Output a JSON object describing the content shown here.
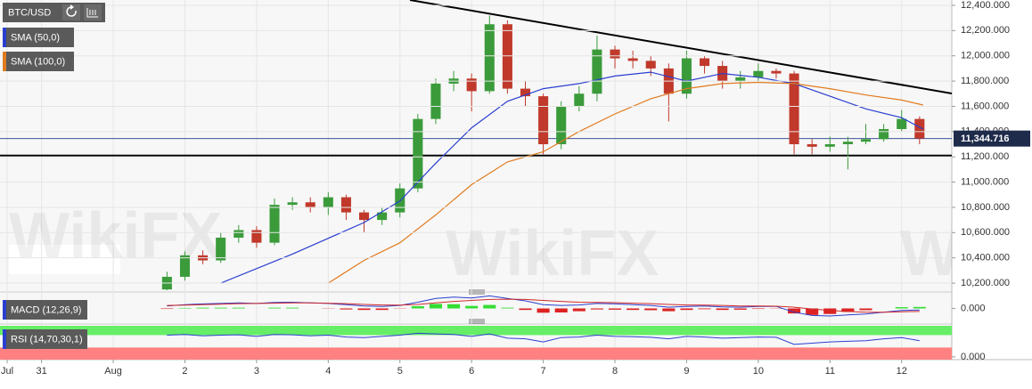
{
  "chart_data": [
    {
      "type": "candlestick",
      "symbol": "BTC/USD",
      "watermark": "WikiFX",
      "x": [
        1.75,
        2,
        2.25,
        2.5,
        2.75,
        3,
        3.25,
        3.5,
        3.75,
        4,
        4.25,
        4.5,
        4.75,
        5,
        5.25,
        5.5,
        5.75,
        6,
        6.25,
        6.5,
        6.75,
        7,
        7.25,
        7.5,
        7.75,
        8,
        8.25,
        8.5,
        8.75,
        9,
        9.25,
        9.5,
        9.75,
        10,
        10.25,
        10.5,
        10.75,
        11,
        11.25,
        11.5,
        11.75,
        12,
        12.25
      ],
      "open": [
        10150,
        10250,
        10420,
        10380,
        10560,
        10620,
        10520,
        10820,
        10840,
        10800,
        10880,
        10760,
        10700,
        10760,
        10950,
        11500,
        11780,
        11820,
        11720,
        12250,
        11740,
        11680,
        11300,
        11600,
        11700,
        12050,
        11980,
        11960,
        11900,
        11700,
        11980,
        11920,
        11800,
        11830,
        11880,
        11860,
        11300,
        11280,
        11300,
        11320,
        11340,
        11420,
        11500
      ],
      "high": [
        10290,
        10450,
        10460,
        10600,
        10660,
        10650,
        10870,
        10880,
        10880,
        10920,
        10900,
        10780,
        10800,
        10990,
        11540,
        11820,
        11880,
        11860,
        12320,
        12280,
        11800,
        11700,
        11640,
        11760,
        12160,
        12080,
        12040,
        12000,
        11940,
        12040,
        12000,
        11960,
        11880,
        11940,
        11900,
        11880,
        11340,
        11360,
        11360,
        11460,
        11460,
        11570,
        11520
      ],
      "low": [
        10120,
        10220,
        10350,
        10360,
        10520,
        10480,
        10500,
        10780,
        10760,
        10740,
        10700,
        10600,
        10660,
        10720,
        10920,
        11460,
        11720,
        11560,
        11700,
        11700,
        11600,
        11220,
        11260,
        11560,
        11640,
        11900,
        11900,
        11840,
        11480,
        11660,
        11860,
        11740,
        11740,
        11800,
        11820,
        11220,
        11220,
        11240,
        11100,
        11300,
        11320,
        11400,
        11300
      ],
      "close": [
        10250,
        10420,
        10380,
        10560,
        10620,
        10520,
        10820,
        10840,
        10800,
        10880,
        10760,
        10700,
        10760,
        10950,
        11500,
        11780,
        11820,
        11720,
        12250,
        11740,
        11680,
        11300,
        11600,
        11700,
        12050,
        11980,
        11960,
        11900,
        11700,
        11980,
        11920,
        11800,
        11830,
        11880,
        11860,
        11300,
        11280,
        11300,
        11320,
        11340,
        11420,
        11500,
        11345
      ],
      "up_color": "#3b9b3b",
      "down_color": "#c0392b",
      "series": [
        {
          "name": "SMA (50,0)",
          "color": "#2a3fd0",
          "x": [
            2.5,
            3.5,
            4.5,
            5,
            5.5,
            6,
            6.5,
            7,
            7.5,
            8,
            8.5,
            9,
            9.5,
            10,
            10.5,
            11,
            11.5,
            12,
            12.3
          ],
          "values": [
            10200,
            10430,
            10680,
            10850,
            11150,
            11430,
            11640,
            11740,
            11780,
            11840,
            11870,
            11800,
            11860,
            11830,
            11780,
            11680,
            11580,
            11510,
            11420
          ]
        },
        {
          "name": "SMA (100,0)",
          "color": "#e07b20",
          "x": [
            4,
            4.5,
            5,
            5.5,
            6,
            6.5,
            7,
            7.5,
            8,
            8.5,
            9,
            9.5,
            10,
            10.5,
            11,
            11.5,
            12,
            12.3
          ],
          "values": [
            10200,
            10380,
            10520,
            10740,
            10980,
            11160,
            11240,
            11400,
            11540,
            11660,
            11740,
            11780,
            11790,
            11780,
            11740,
            11690,
            11650,
            11610
          ]
        }
      ],
      "trendlines": [
        {
          "x": [
            5.14,
            12.7
          ],
          "values": [
            12442,
            11702
          ]
        },
        {
          "x": [
            -0.58,
            12.7
          ],
          "values": [
            11210,
            11210
          ]
        }
      ],
      "trendline_color": "#000000",
      "last_price": {
        "value": 11344.716,
        "label": "11,344.716"
      },
      "xlim": [
        -0.58,
        12.7
      ],
      "ylim": [
        10144,
        12442
      ],
      "xticks": [
        {
          "value": -0.48,
          "label": "Jul"
        },
        {
          "value": 0,
          "label": "31"
        },
        {
          "value": 1,
          "label": "Aug"
        },
        2,
        3,
        4,
        5,
        6,
        7,
        8,
        9,
        10,
        11,
        12
      ],
      "yticks": [
        {
          "value": 10200,
          "label": "10,200.000"
        },
        {
          "value": 10400,
          "label": "10,400.000"
        },
        {
          "value": 10600,
          "label": "10,600.000"
        },
        {
          "value": 10800,
          "label": "10,800.000"
        },
        {
          "value": 11000,
          "label": "11,000.000"
        },
        {
          "value": 11200,
          "label": "11,200.000"
        },
        {
          "value": 11400,
          "label": "11,400.000"
        },
        {
          "value": 11600,
          "label": "11,600.000"
        },
        {
          "value": 11800,
          "label": "11,800.000"
        },
        {
          "value": 12000,
          "label": "12,000.000"
        },
        {
          "value": 12200,
          "label": "12,200.000"
        },
        {
          "value": 12400,
          "label": "12,400.000"
        }
      ],
      "grid": true
    },
    {
      "type": "macd",
      "title": "MACD (12,26,9)",
      "x": [
        1.75,
        2,
        2.25,
        2.5,
        2.75,
        3,
        3.25,
        3.5,
        3.75,
        4,
        4.25,
        4.5,
        4.75,
        5,
        5.25,
        5.5,
        5.75,
        6,
        6.25,
        6.5,
        6.75,
        7,
        7.25,
        7.5,
        7.75,
        8,
        8.25,
        8.5,
        8.75,
        9,
        9.25,
        9.5,
        9.75,
        10,
        10.25,
        10.5,
        10.75,
        11,
        11.25,
        11.5,
        11.75,
        12,
        12.25
      ],
      "macd": [
        10,
        15,
        18,
        20,
        22,
        20,
        24,
        25,
        22,
        20,
        15,
        10,
        8,
        12,
        25,
        40,
        45,
        42,
        50,
        40,
        30,
        15,
        12,
        14,
        20,
        18,
        15,
        12,
        5,
        8,
        10,
        6,
        5,
        8,
        8,
        -15,
        -28,
        -30,
        -26,
        -22,
        -15,
        -8,
        -6
      ],
      "signal": [
        12,
        13,
        15,
        17,
        19,
        20,
        21,
        22,
        22,
        21,
        19,
        16,
        14,
        13,
        16,
        22,
        28,
        32,
        36,
        37,
        36,
        32,
        28,
        25,
        24,
        23,
        21,
        19,
        16,
        14,
        13,
        12,
        10,
        10,
        9,
        5,
        -2,
        -8,
        -12,
        -15,
        -15,
        -13,
        -12
      ],
      "histogram": [
        -2,
        2,
        3,
        3,
        3,
        0,
        3,
        3,
        0,
        -1,
        -4,
        -6,
        -6,
        -1,
        9,
        18,
        17,
        10,
        14,
        3,
        -6,
        -17,
        -16,
        -11,
        -4,
        -5,
        -6,
        -7,
        -11,
        -6,
        -3,
        -6,
        -5,
        -2,
        -1,
        -20,
        -26,
        -22,
        -14,
        -7,
        0,
        5,
        6
      ],
      "macd_color": "#2a3fd0",
      "signal_color": "#d02a2a",
      "up_color": "#33dd33",
      "down_color": "#dd2222",
      "ylim": [
        -55,
        55
      ],
      "yticks": [
        {
          "value": 0,
          "label": "0.000"
        }
      ]
    },
    {
      "type": "rsi",
      "title": "RSI (14,70,30,1)",
      "x": [
        1.75,
        2,
        2.25,
        2.5,
        2.75,
        3,
        3.25,
        3.5,
        3.75,
        4,
        4.25,
        4.5,
        4.75,
        5,
        5.25,
        5.5,
        5.75,
        6,
        6.25,
        6.5,
        6.75,
        7,
        7.25,
        7.5,
        7.75,
        8,
        8.25,
        8.5,
        8.75,
        9,
        9.25,
        9.5,
        9.75,
        10,
        10.25,
        10.5,
        10.75,
        11,
        11.25,
        11.5,
        11.75,
        12,
        12.25
      ],
      "values": [
        70,
        72,
        68,
        70,
        71,
        66,
        72,
        71,
        68,
        70,
        64,
        62,
        66,
        70,
        76,
        74,
        72,
        66,
        74,
        60,
        58,
        48,
        62,
        64,
        70,
        66,
        65,
        63,
        58,
        66,
        64,
        60,
        62,
        64,
        63,
        40,
        44,
        48,
        50,
        52,
        58,
        62,
        52
      ],
      "color": "#2a3fd0",
      "overbought": 70,
      "oversold": 30,
      "overbought_color": "#66ee66",
      "oversold_color": "#ff8080",
      "ylim": [
        -9,
        100
      ],
      "yticks": [
        {
          "value": 0,
          "label": "0.000"
        }
      ]
    }
  ]
}
